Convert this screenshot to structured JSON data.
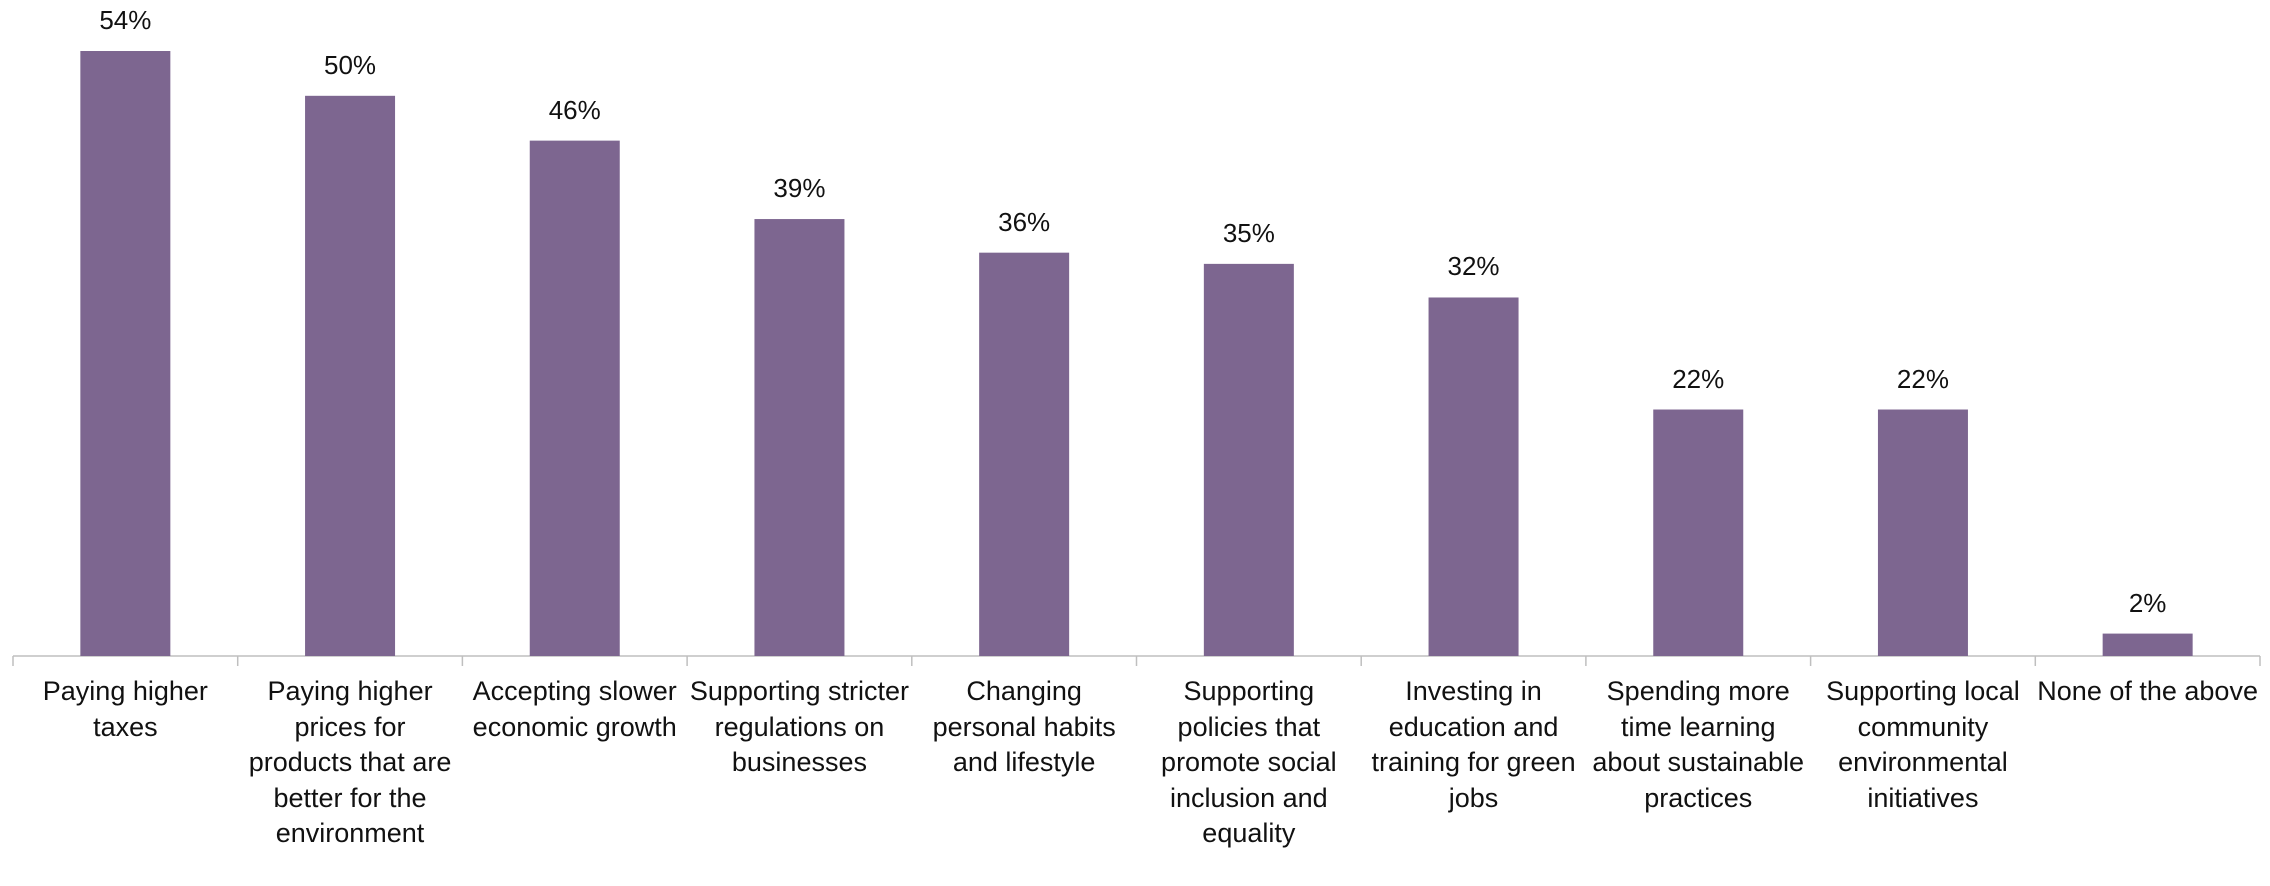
{
  "chart_data": {
    "type": "bar",
    "categories": [
      "Paying higher taxes",
      "Paying higher prices for products that are better for the environment",
      "Accepting slower economic growth",
      "Supporting stricter regulations on businesses",
      "Changing personal habits and lifestyle",
      "Supporting policies that promote social inclusion and equality",
      "Investing in education and training for green jobs",
      "Spending more time learning about sustainable practices",
      "Supporting local community environmental initiatives",
      "None of the above"
    ],
    "values": [
      54,
      50,
      46,
      39,
      36,
      35,
      32,
      22,
      22,
      2
    ],
    "value_labels": [
      "54%",
      "50%",
      "46%",
      "39%",
      "36%",
      "35%",
      "32%",
      "22%",
      "22%",
      "2%"
    ],
    "color": "#7d6690"
  }
}
